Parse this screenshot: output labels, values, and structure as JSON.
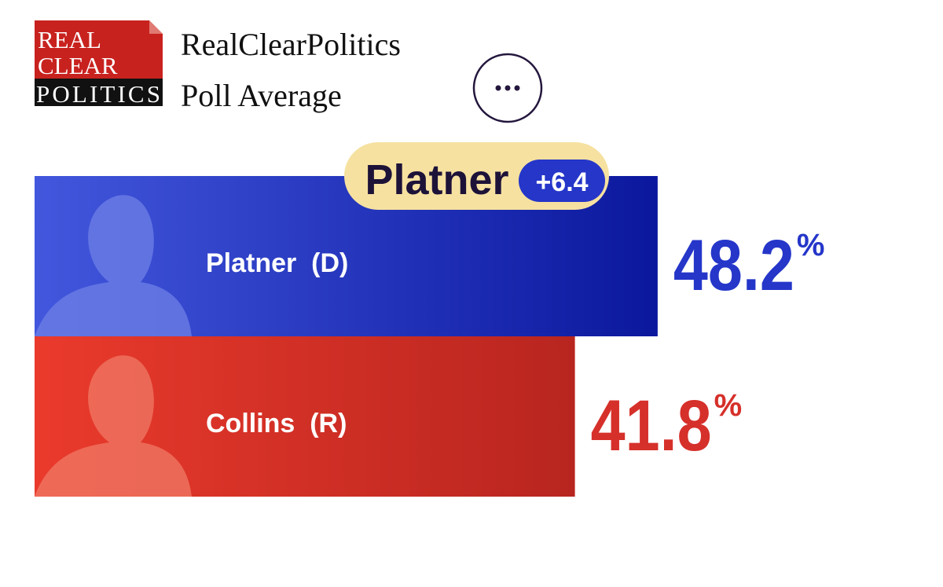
{
  "header": {
    "logo": [
      "REAL",
      "CLEAR",
      "POLITICS"
    ],
    "title": "RealClearPolitics",
    "subtitle": "Poll Average"
  },
  "chart_data": {
    "type": "bar",
    "orientation": "horizontal",
    "categories": [
      "Platner  (D)",
      "Collins  (R)"
    ],
    "values": [
      48.2,
      41.8
    ],
    "unit": "%",
    "colors": [
      "#2536c9",
      "#d6302a"
    ],
    "leader": {
      "name": "Platner",
      "margin": {
        "value": 6.4,
        "label": "+6.4"
      }
    }
  }
}
